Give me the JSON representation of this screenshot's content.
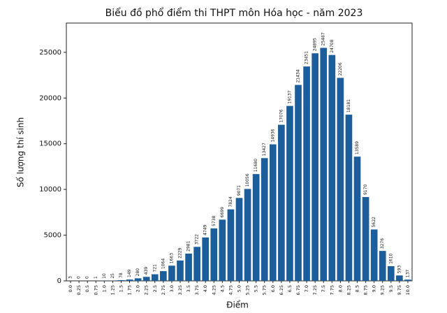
{
  "chart_data": {
    "type": "bar",
    "title": "Biểu đồ phổ điểm thi THPT môn Hóa học - năm 2023",
    "xlabel": "Điểm",
    "ylabel": "Số lượng thí sinh",
    "categories": [
      "0.0",
      "0.25",
      "0.5",
      "0.75",
      "1.0",
      "1.25",
      "1.5",
      "1.75",
      "2.0",
      "2.25",
      "2.5",
      "2.75",
      "3.0",
      "3.25",
      "3.5",
      "3.75",
      "4.0",
      "4.25",
      "4.5",
      "4.75",
      "5.0",
      "5.25",
      "5.5",
      "5.75",
      "6.0",
      "6.25",
      "6.5",
      "6.75",
      "7.0",
      "7.25",
      "7.5",
      "7.75",
      "8.0",
      "8.25",
      "8.5",
      "8.75",
      "9.0",
      "9.25",
      "9.5",
      "9.75",
      "10.0"
    ],
    "values": [
      3,
      0,
      0,
      1,
      10,
      25,
      78,
      149,
      280,
      439,
      721,
      1064,
      1663,
      2229,
      2981,
      3722,
      4749,
      5738,
      6699,
      7824,
      9071,
      10056,
      11680,
      13427,
      14936,
      17076,
      19137,
      21434,
      23451,
      24895,
      25487,
      24708,
      22206,
      18181,
      13589,
      9170,
      5622,
      3276,
      1610,
      593,
      137
    ],
    "color": "#1c5e9c",
    "ylim": [
      0,
      28200
    ],
    "yticks": [
      0,
      5000,
      10000,
      15000,
      20000,
      25000
    ],
    "grid": false
  }
}
